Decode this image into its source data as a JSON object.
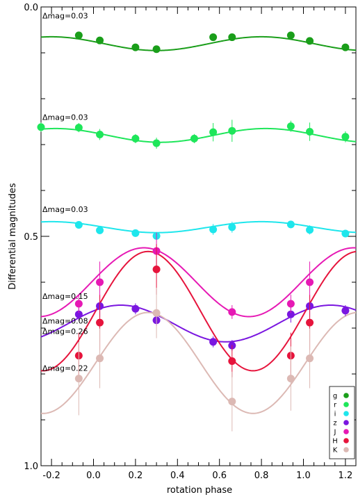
{
  "chart_data": {
    "type": "scatter",
    "xlabel": "rotation phase",
    "ylabel": "Differential magnitudes",
    "xlim": [
      -0.25,
      1.25
    ],
    "ylim": [
      0.0,
      1.0
    ],
    "y_inverted": true,
    "x_ticks": [
      -0.2,
      0.0,
      0.2,
      0.4,
      0.6,
      0.8,
      1.0,
      1.2
    ],
    "x_tick_labels": [
      "-0.2",
      "0.0",
      "0.2",
      "0.4",
      "0.6",
      "0.8",
      "1.0",
      "1.2"
    ],
    "y_ticks": [
      0.0,
      0.5,
      1.0
    ],
    "y_tick_labels": [
      "0.0",
      "0.5",
      "1.0"
    ],
    "grid": false,
    "legend_position": "bottom-right",
    "series": [
      {
        "name": "g",
        "color": "#1a9e1a",
        "amplitude_label": "Δmag=0.03",
        "curve": {
          "offset": 0.08,
          "amplitude": 0.015,
          "phase_min": 0.3
        },
        "points": [
          {
            "x": -0.07,
            "y": 0.062,
            "err": 0.006
          },
          {
            "x": 0.03,
            "y": 0.073,
            "err": 0.006
          },
          {
            "x": 0.2,
            "y": 0.088,
            "err": 0.006
          },
          {
            "x": 0.3,
            "y": 0.092,
            "err": 0.006
          },
          {
            "x": 0.57,
            "y": 0.066,
            "err": 0.006
          },
          {
            "x": 0.66,
            "y": 0.066,
            "err": 0.006
          },
          {
            "x": 0.94,
            "y": 0.062,
            "err": 0.006
          },
          {
            "x": 1.03,
            "y": 0.074,
            "err": 0.006
          },
          {
            "x": 1.2,
            "y": 0.088,
            "err": 0.006
          }
        ]
      },
      {
        "name": "r",
        "color": "#1ee65a",
        "amplitude_label": "Δmag=0.03",
        "curve": {
          "offset": 0.28,
          "amplitude": 0.015,
          "phase_min": 0.32
        },
        "points": [
          {
            "x": -0.25,
            "y": 0.262,
            "err": 0.01
          },
          {
            "x": -0.07,
            "y": 0.263,
            "err": 0.01
          },
          {
            "x": 0.03,
            "y": 0.278,
            "err": 0.012
          },
          {
            "x": 0.2,
            "y": 0.287,
            "err": 0.01
          },
          {
            "x": 0.3,
            "y": 0.297,
            "err": 0.012
          },
          {
            "x": 0.48,
            "y": 0.287,
            "err": 0.01
          },
          {
            "x": 0.57,
            "y": 0.273,
            "err": 0.02
          },
          {
            "x": 0.66,
            "y": 0.27,
            "err": 0.024
          },
          {
            "x": 0.94,
            "y": 0.26,
            "err": 0.012
          },
          {
            "x": 1.03,
            "y": 0.272,
            "err": 0.02
          },
          {
            "x": 1.2,
            "y": 0.283,
            "err": 0.012
          }
        ]
      },
      {
        "name": "i",
        "color": "#1ee6ec",
        "amplitude_label": "Δmag=0.03",
        "curve": {
          "offset": 0.48,
          "amplitude": 0.012,
          "phase_min": 0.3
        },
        "points": [
          {
            "x": -0.07,
            "y": 0.475,
            "err": 0.008
          },
          {
            "x": 0.03,
            "y": 0.487,
            "err": 0.008
          },
          {
            "x": 0.2,
            "y": 0.493,
            "err": 0.008
          },
          {
            "x": 0.3,
            "y": 0.499,
            "err": 0.008
          },
          {
            "x": 0.57,
            "y": 0.485,
            "err": 0.012
          },
          {
            "x": 0.66,
            "y": 0.48,
            "err": 0.012
          },
          {
            "x": 0.94,
            "y": 0.474,
            "err": 0.008
          },
          {
            "x": 1.03,
            "y": 0.486,
            "err": 0.01
          },
          {
            "x": 1.2,
            "y": 0.494,
            "err": 0.008
          }
        ]
      },
      {
        "name": "z",
        "color": "#7a16e0",
        "amplitude_label": "Δmag=0.08",
        "curve": {
          "offset": 0.69,
          "amplitude": 0.04,
          "phase_min": 0.63
        },
        "points": [
          {
            "x": -0.07,
            "y": 0.67,
            "err": 0.014
          },
          {
            "x": 0.03,
            "y": 0.652,
            "err": 0.025
          },
          {
            "x": 0.2,
            "y": 0.658,
            "err": 0.012
          },
          {
            "x": 0.3,
            "y": 0.683,
            "err": 0.012
          },
          {
            "x": 0.57,
            "y": 0.73,
            "err": 0.012
          },
          {
            "x": 0.66,
            "y": 0.738,
            "err": 0.012
          },
          {
            "x": 0.94,
            "y": 0.67,
            "err": 0.018
          },
          {
            "x": 1.03,
            "y": 0.652,
            "err": 0.025
          },
          {
            "x": 1.2,
            "y": 0.662,
            "err": 0.012
          }
        ]
      },
      {
        "name": "J",
        "color": "#e619b4",
        "amplitude_label": "Δmag=0.15",
        "curve": {
          "offset": 0.6,
          "amplitude": 0.075,
          "phase_min": 0.74
        },
        "points": [
          {
            "x": -0.07,
            "y": 0.647,
            "err": 0.02
          },
          {
            "x": 0.03,
            "y": 0.6,
            "err": 0.045
          },
          {
            "x": 0.3,
            "y": 0.532,
            "err": 0.04
          },
          {
            "x": 0.66,
            "y": 0.665,
            "err": 0.015
          },
          {
            "x": 0.94,
            "y": 0.647,
            "err": 0.02
          },
          {
            "x": 1.03,
            "y": 0.6,
            "err": 0.045
          }
        ]
      },
      {
        "name": "H",
        "color": "#e6143c",
        "amplitude_label": "Δmag=0.26",
        "curve": {
          "offset": 0.663,
          "amplitude": 0.13,
          "phase_min": 0.76
        },
        "points": [
          {
            "x": -0.07,
            "y": 0.76,
            "err": 0.05
          },
          {
            "x": 0.03,
            "y": 0.688,
            "err": 0.06
          },
          {
            "x": 0.3,
            "y": 0.572,
            "err": 0.055
          },
          {
            "x": 0.66,
            "y": 0.772,
            "err": 0.035
          },
          {
            "x": 0.94,
            "y": 0.76,
            "err": 0.05
          },
          {
            "x": 1.03,
            "y": 0.688,
            "err": 0.06
          }
        ]
      },
      {
        "name": "K",
        "color": "#dcb9b4",
        "amplitude_label": "Δmag=0.22",
        "curve": {
          "offset": 0.776,
          "amplitude": 0.11,
          "phase_min": 0.76
        },
        "points": [
          {
            "x": -0.07,
            "y": 0.81,
            "err": 0.08
          },
          {
            "x": 0.03,
            "y": 0.766,
            "err": 0.065
          },
          {
            "x": 0.3,
            "y": 0.667,
            "err": 0.055
          },
          {
            "x": 0.66,
            "y": 0.86,
            "err": 0.065
          },
          {
            "x": 0.94,
            "y": 0.81,
            "err": 0.07
          },
          {
            "x": 1.03,
            "y": 0.766,
            "err": 0.065
          }
        ]
      }
    ]
  }
}
